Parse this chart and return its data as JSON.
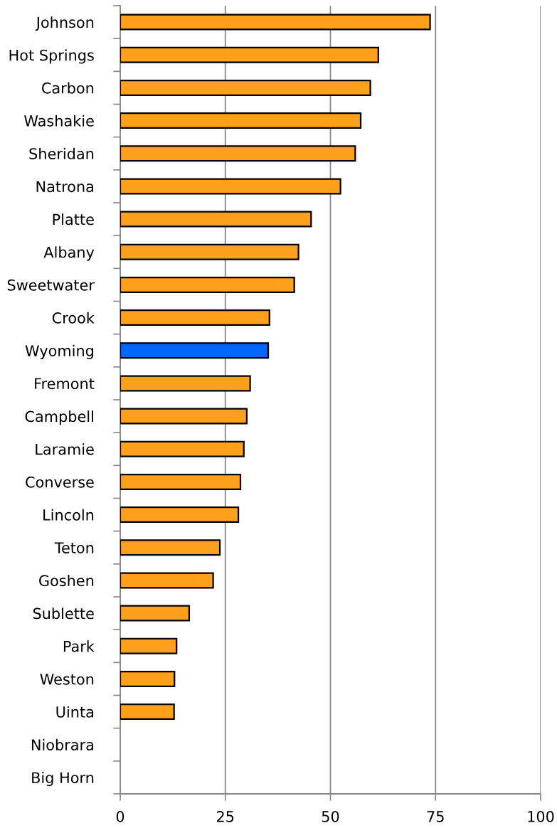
{
  "chart_data": {
    "type": "bar",
    "orientation": "horizontal",
    "categories": [
      "Johnson",
      "Hot Springs",
      "Carbon",
      "Washakie",
      "Sheridan",
      "Natrona",
      "Platte",
      "Albany",
      "Sweetwater",
      "Crook",
      "Wyoming",
      "Fremont",
      "Campbell",
      "Laramie",
      "Converse",
      "Lincoln",
      "Teton",
      "Goshen",
      "Sublette",
      "Park",
      "Weston",
      "Uinta",
      "Niobrara",
      "Big Horn"
    ],
    "values": [
      73.7,
      61.4,
      59.5,
      57.2,
      55.9,
      52.4,
      45.4,
      42.4,
      41.4,
      35.5,
      35.2,
      30.9,
      30.1,
      29.4,
      28.6,
      28.1,
      23.7,
      22.1,
      16.4,
      13.4,
      12.9,
      12.8,
      null,
      null
    ],
    "colors": [
      "#ffa11c",
      "#ffa11c",
      "#ffa11c",
      "#ffa11c",
      "#ffa11c",
      "#ffa11c",
      "#ffa11c",
      "#ffa11c",
      "#ffa11c",
      "#ffa11c",
      "#0066ff",
      "#ffa11c",
      "#ffa11c",
      "#ffa11c",
      "#ffa11c",
      "#ffa11c",
      "#ffa11c",
      "#ffa11c",
      "#ffa11c",
      "#ffa11c",
      "#ffa11c",
      "#ffa11c",
      "#ffa11c",
      "#ffa11c"
    ],
    "xlim": [
      0,
      100
    ],
    "xticks": [
      0,
      25,
      50,
      75,
      100
    ],
    "grid": "x",
    "legend": false
  }
}
